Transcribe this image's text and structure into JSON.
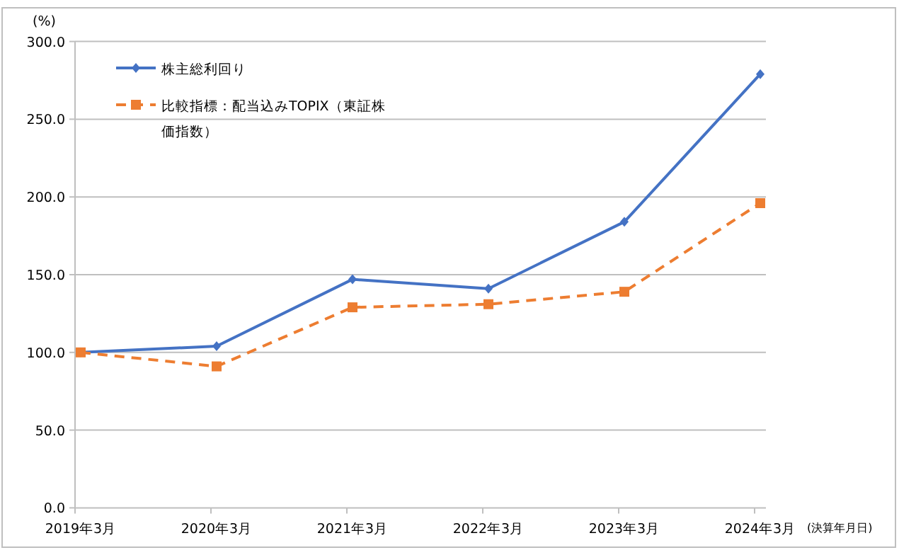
{
  "chart_data": {
    "type": "line",
    "ylabel": "(%)",
    "xlabel": "(決算年月日)",
    "categories": [
      "2019年3月",
      "2020年3月",
      "2021年3月",
      "2022年3月",
      "2023年3月",
      "2024年3月"
    ],
    "series": [
      {
        "name": "株主総利回り",
        "color": "#4472c4",
        "marker": "diamond",
        "line_style": "solid",
        "values": [
          100,
          104,
          147,
          141,
          184,
          279
        ]
      },
      {
        "name": "比較指標：配当込みTOPIX（東証株価指数）",
        "color": "#ed7d31",
        "marker": "square",
        "line_style": "dashed",
        "values": [
          100,
          91,
          129,
          131,
          139,
          196
        ]
      }
    ],
    "ylim": [
      0,
      300
    ],
    "yticks": [
      {
        "value": 0,
        "label": "0.0"
      },
      {
        "value": 50,
        "label": "50.0"
      },
      {
        "value": 100,
        "label": "100.0"
      },
      {
        "value": 150,
        "label": "150.0"
      },
      {
        "value": 200,
        "label": "200.0"
      },
      {
        "value": 250,
        "label": "250.0"
      },
      {
        "value": 300,
        "label": "300.0"
      }
    ],
    "grid": "y",
    "legend": "top left"
  }
}
